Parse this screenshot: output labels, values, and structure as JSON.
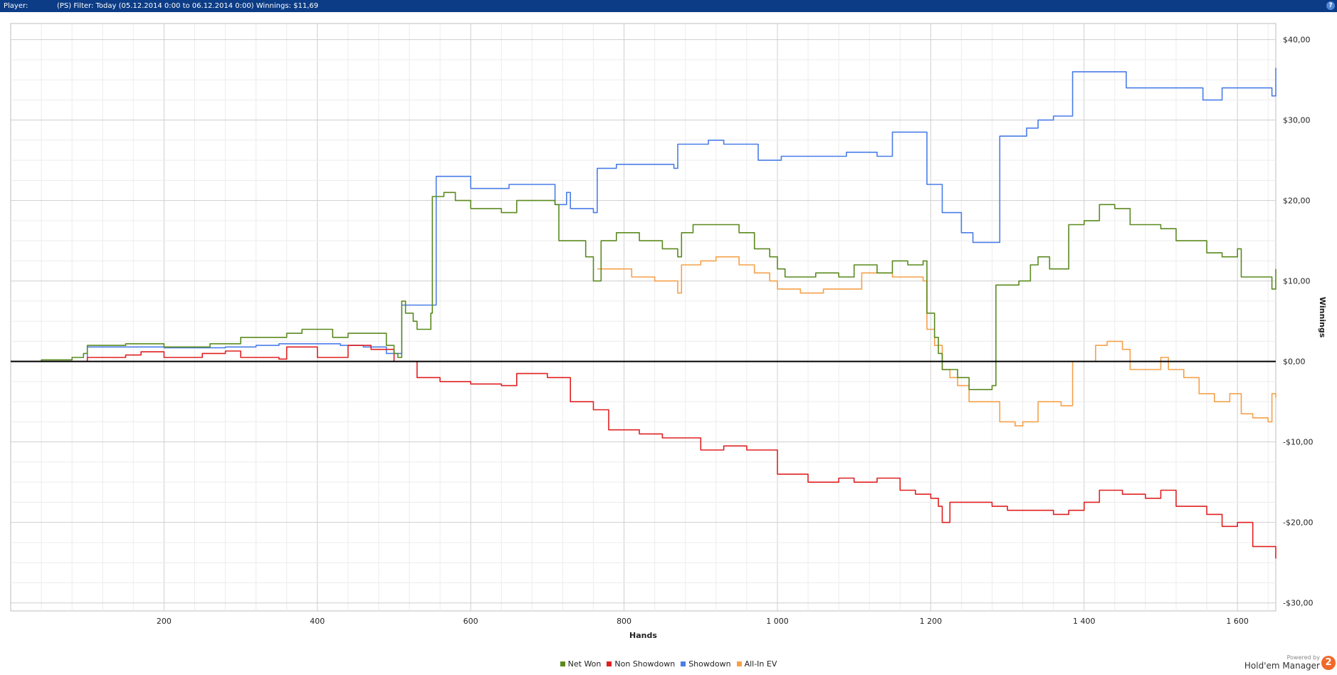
{
  "header": {
    "player_label": "Player:",
    "filter_text": "(PS) Filter: Today (05.12.2014 0:00 to 06.12.2014 0:00) Winnings: $11,69",
    "help_label": "?"
  },
  "branding": {
    "powered_by": "Powered by",
    "name": "Hold'em Manager",
    "badge": "2"
  },
  "chart_data": {
    "type": "line",
    "xlabel": "Hands",
    "ylabel": "Winnings",
    "xlim": [
      0,
      1650
    ],
    "ylim": [
      -31,
      42
    ],
    "x_ticks": [
      200,
      400,
      600,
      800,
      1000,
      1200,
      1400,
      1600
    ],
    "x_tick_labels": [
      "200",
      "400",
      "600",
      "800",
      "1 000",
      "1 200",
      "1 400",
      "1 600"
    ],
    "y_ticks": [
      40,
      30,
      20,
      10,
      0,
      -10,
      -20,
      -30
    ],
    "y_tick_labels": [
      "$40,00",
      "$30,00",
      "$20,00",
      "$10,00",
      "$0,00",
      "-$10,00",
      "-$20,00",
      "-$30,00"
    ],
    "grid": true,
    "legend_position": "bottom-center",
    "series": [
      {
        "name": "Net Won",
        "color": "#5a8a1e",
        "points": [
          [
            0,
            0
          ],
          [
            40,
            0.2
          ],
          [
            80,
            0.5
          ],
          [
            95,
            1
          ],
          [
            100,
            2
          ],
          [
            150,
            2.2
          ],
          [
            200,
            1.8
          ],
          [
            260,
            2.2
          ],
          [
            300,
            3
          ],
          [
            330,
            3
          ],
          [
            360,
            3.5
          ],
          [
            380,
            4
          ],
          [
            420,
            3
          ],
          [
            440,
            3.5
          ],
          [
            490,
            2
          ],
          [
            500,
            1
          ],
          [
            505,
            0.5
          ],
          [
            510,
            7.5
          ],
          [
            515,
            6
          ],
          [
            525,
            5
          ],
          [
            530,
            4
          ],
          [
            545,
            4
          ],
          [
            548,
            6
          ],
          [
            550,
            20.5
          ],
          [
            565,
            21
          ],
          [
            580,
            20
          ],
          [
            600,
            19
          ],
          [
            640,
            18.5
          ],
          [
            660,
            20
          ],
          [
            690,
            20
          ],
          [
            710,
            19.5
          ],
          [
            715,
            15
          ],
          [
            750,
            13
          ],
          [
            760,
            10
          ],
          [
            765,
            10
          ],
          [
            770,
            15
          ],
          [
            790,
            16
          ],
          [
            820,
            15
          ],
          [
            850,
            14
          ],
          [
            870,
            13
          ],
          [
            875,
            16
          ],
          [
            890,
            17
          ],
          [
            920,
            17
          ],
          [
            950,
            16
          ],
          [
            970,
            14
          ],
          [
            990,
            13
          ],
          [
            1000,
            11.5
          ],
          [
            1010,
            10.5
          ],
          [
            1050,
            11
          ],
          [
            1080,
            10.5
          ],
          [
            1100,
            12
          ],
          [
            1130,
            11
          ],
          [
            1150,
            12.5
          ],
          [
            1170,
            12
          ],
          [
            1190,
            12.5
          ],
          [
            1195,
            6
          ],
          [
            1205,
            3
          ],
          [
            1210,
            1
          ],
          [
            1215,
            -1
          ],
          [
            1225,
            -1
          ],
          [
            1235,
            -2
          ],
          [
            1250,
            -3.5
          ],
          [
            1280,
            -3
          ],
          [
            1285,
            9.5
          ],
          [
            1300,
            9.5
          ],
          [
            1315,
            10
          ],
          [
            1330,
            12
          ],
          [
            1340,
            13
          ],
          [
            1355,
            11.5
          ],
          [
            1370,
            11.5
          ],
          [
            1380,
            17
          ],
          [
            1400,
            17.5
          ],
          [
            1420,
            19.5
          ],
          [
            1440,
            19
          ],
          [
            1460,
            17
          ],
          [
            1500,
            16.5
          ],
          [
            1520,
            15
          ],
          [
            1540,
            15
          ],
          [
            1560,
            13.5
          ],
          [
            1580,
            13
          ],
          [
            1600,
            14
          ],
          [
            1605,
            10.5
          ],
          [
            1630,
            10.5
          ],
          [
            1645,
            9
          ],
          [
            1650,
            11.5
          ]
        ]
      },
      {
        "name": "Non Showdown",
        "color": "#e02020",
        "points": [
          [
            0,
            0
          ],
          [
            60,
            0
          ],
          [
            100,
            0.5
          ],
          [
            150,
            0.8
          ],
          [
            170,
            1.2
          ],
          [
            200,
            0.5
          ],
          [
            250,
            1
          ],
          [
            280,
            1.3
          ],
          [
            300,
            0.5
          ],
          [
            350,
            0.3
          ],
          [
            360,
            1.8
          ],
          [
            400,
            0.5
          ],
          [
            440,
            2
          ],
          [
            470,
            1.5
          ],
          [
            500,
            0
          ],
          [
            530,
            -2
          ],
          [
            560,
            -2.5
          ],
          [
            600,
            -2.8
          ],
          [
            640,
            -3
          ],
          [
            660,
            -1.5
          ],
          [
            700,
            -2
          ],
          [
            730,
            -5
          ],
          [
            760,
            -6
          ],
          [
            780,
            -8.5
          ],
          [
            820,
            -9
          ],
          [
            850,
            -9.5
          ],
          [
            900,
            -11
          ],
          [
            930,
            -10.5
          ],
          [
            960,
            -11
          ],
          [
            1000,
            -14
          ],
          [
            1040,
            -15
          ],
          [
            1080,
            -14.5
          ],
          [
            1100,
            -15
          ],
          [
            1130,
            -14.5
          ],
          [
            1160,
            -16
          ],
          [
            1180,
            -16.5
          ],
          [
            1200,
            -17
          ],
          [
            1210,
            -18
          ],
          [
            1215,
            -20
          ],
          [
            1225,
            -17.5
          ],
          [
            1250,
            -17.5
          ],
          [
            1280,
            -18
          ],
          [
            1300,
            -18.5
          ],
          [
            1330,
            -18.5
          ],
          [
            1360,
            -19
          ],
          [
            1380,
            -18.5
          ],
          [
            1400,
            -17.5
          ],
          [
            1420,
            -16
          ],
          [
            1450,
            -16.5
          ],
          [
            1480,
            -17
          ],
          [
            1500,
            -16
          ],
          [
            1520,
            -18
          ],
          [
            1560,
            -19
          ],
          [
            1580,
            -20.5
          ],
          [
            1600,
            -20
          ],
          [
            1620,
            -23
          ],
          [
            1650,
            -24.5
          ]
        ]
      },
      {
        "name": "Showdown",
        "color": "#4a7de8",
        "points": [
          [
            0,
            0
          ],
          [
            95,
            0
          ],
          [
            100,
            1.8
          ],
          [
            150,
            1.8
          ],
          [
            200,
            1.7
          ],
          [
            280,
            1.8
          ],
          [
            320,
            2
          ],
          [
            350,
            2.2
          ],
          [
            400,
            2.2
          ],
          [
            430,
            2
          ],
          [
            460,
            1.8
          ],
          [
            490,
            1
          ],
          [
            500,
            1
          ],
          [
            510,
            7
          ],
          [
            550,
            7
          ],
          [
            555,
            23
          ],
          [
            590,
            23
          ],
          [
            600,
            21.5
          ],
          [
            640,
            21.5
          ],
          [
            650,
            22
          ],
          [
            700,
            22
          ],
          [
            710,
            19.5
          ],
          [
            720,
            19.5
          ],
          [
            725,
            21
          ],
          [
            730,
            19
          ],
          [
            760,
            18.5
          ],
          [
            765,
            24
          ],
          [
            790,
            24.5
          ],
          [
            850,
            24.5
          ],
          [
            865,
            24
          ],
          [
            870,
            27
          ],
          [
            900,
            27
          ],
          [
            910,
            27.5
          ],
          [
            930,
            27
          ],
          [
            970,
            27
          ],
          [
            975,
            25
          ],
          [
            1000,
            25
          ],
          [
            1005,
            25.5
          ],
          [
            1070,
            25.5
          ],
          [
            1090,
            26
          ],
          [
            1130,
            25.5
          ],
          [
            1150,
            28.5
          ],
          [
            1190,
            28.5
          ],
          [
            1195,
            22
          ],
          [
            1210,
            22
          ],
          [
            1215,
            18.5
          ],
          [
            1235,
            18.5
          ],
          [
            1240,
            16
          ],
          [
            1250,
            16
          ],
          [
            1255,
            14.8
          ],
          [
            1285,
            14.8
          ],
          [
            1290,
            28
          ],
          [
            1320,
            28
          ],
          [
            1325,
            29
          ],
          [
            1340,
            30
          ],
          [
            1360,
            30.5
          ],
          [
            1380,
            30.5
          ],
          [
            1385,
            36
          ],
          [
            1450,
            36
          ],
          [
            1455,
            34
          ],
          [
            1550,
            34
          ],
          [
            1555,
            32.5
          ],
          [
            1575,
            32.5
          ],
          [
            1580,
            34
          ],
          [
            1640,
            34
          ],
          [
            1645,
            33
          ],
          [
            1650,
            36.5
          ]
        ]
      },
      {
        "name": "All-In EV",
        "color": "#f5a04a",
        "points": [
          [
            765,
            11.5
          ],
          [
            790,
            11.5
          ],
          [
            810,
            10.5
          ],
          [
            840,
            10
          ],
          [
            860,
            10
          ],
          [
            870,
            8.5
          ],
          [
            875,
            12
          ],
          [
            900,
            12.5
          ],
          [
            920,
            13
          ],
          [
            950,
            12
          ],
          [
            970,
            11
          ],
          [
            990,
            10
          ],
          [
            1000,
            9
          ],
          [
            1030,
            8.5
          ],
          [
            1060,
            9
          ],
          [
            1090,
            9
          ],
          [
            1110,
            11
          ],
          [
            1150,
            10.5
          ],
          [
            1170,
            10.5
          ],
          [
            1190,
            10
          ],
          [
            1195,
            4
          ],
          [
            1205,
            2
          ],
          [
            1215,
            -1
          ],
          [
            1225,
            -2
          ],
          [
            1235,
            -3
          ],
          [
            1250,
            -5
          ],
          [
            1270,
            -5
          ],
          [
            1290,
            -7.5
          ],
          [
            1310,
            -8
          ],
          [
            1320,
            -7.5
          ],
          [
            1340,
            -5
          ],
          [
            1360,
            -5
          ],
          [
            1370,
            -5.5
          ],
          [
            1380,
            -5.5
          ],
          [
            1385,
            0
          ],
          [
            1400,
            0
          ],
          [
            1415,
            2
          ],
          [
            1430,
            2.5
          ],
          [
            1450,
            1.5
          ],
          [
            1460,
            -1
          ],
          [
            1480,
            -1
          ],
          [
            1500,
            0.5
          ],
          [
            1510,
            -1
          ],
          [
            1530,
            -2
          ],
          [
            1550,
            -4
          ],
          [
            1570,
            -5
          ],
          [
            1590,
            -4
          ],
          [
            1605,
            -6.5
          ],
          [
            1620,
            -7
          ],
          [
            1640,
            -7.5
          ],
          [
            1645,
            -4
          ],
          [
            1650,
            -4.5
          ]
        ]
      }
    ]
  }
}
